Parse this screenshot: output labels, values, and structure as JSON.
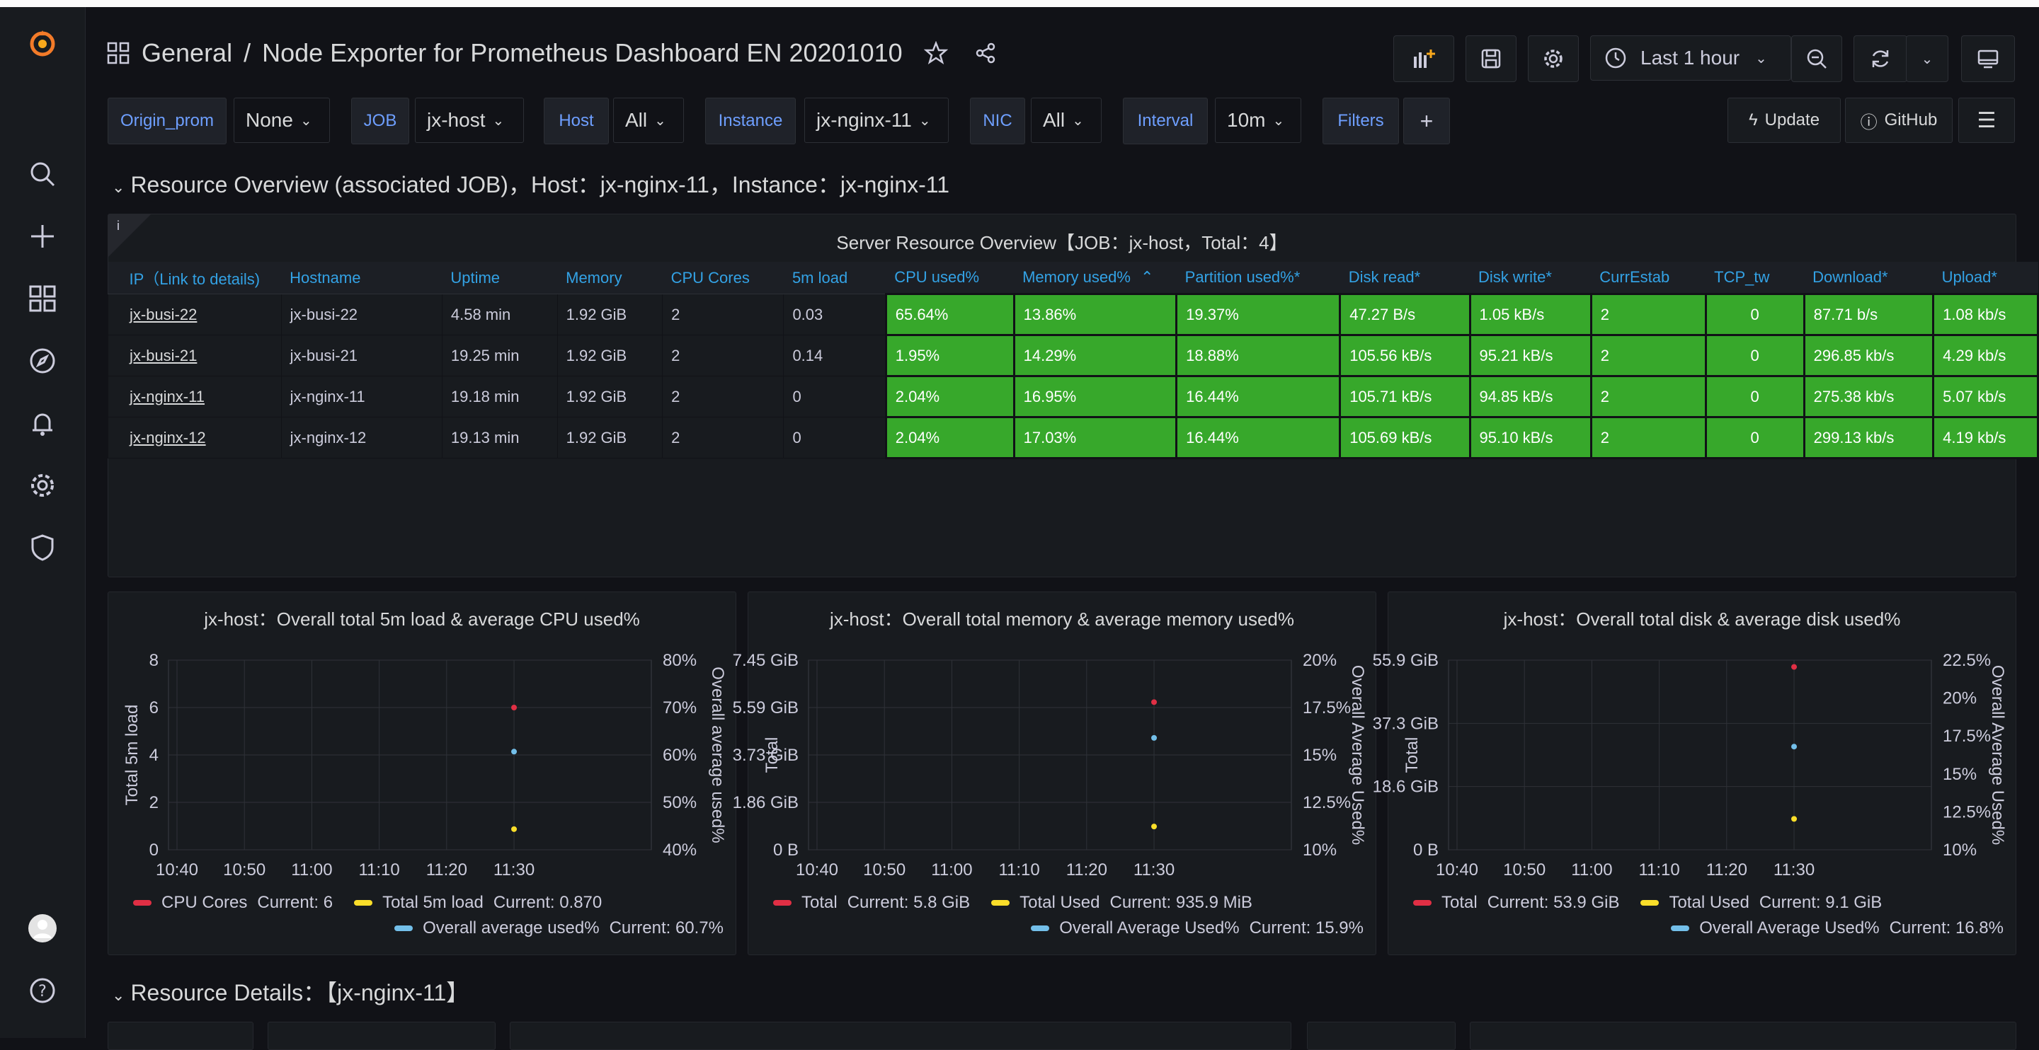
{
  "header": {
    "breadcrumb_folder": "General",
    "breadcrumb_sep": "/",
    "dashboard_title": "Node Exporter for Prometheus Dashboard EN 20201010",
    "time_range": "Last 1 hour"
  },
  "variables": [
    {
      "label": "Origin_prom",
      "value": "None"
    },
    {
      "label": "JOB",
      "value": "jx-host"
    },
    {
      "label": "Host",
      "value": "All"
    },
    {
      "label": "Instance",
      "value": "jx-nginx-11"
    },
    {
      "label": "NIC",
      "value": "All"
    },
    {
      "label": "Interval",
      "value": "10m"
    }
  ],
  "filters_label": "Filters",
  "links": {
    "update": "Update",
    "github": "GitHub"
  },
  "row1_title": "Resource Overview (associated JOB)，Host：jx-nginx-11，Instance：jx-nginx-11",
  "row2_title": "Resource Details：【jx-nginx-11】",
  "table_panel": {
    "title": "Server Resource Overview【JOB：jx-host，Total：4】",
    "columns": [
      "IP（Link to details)",
      "Hostname",
      "Uptime",
      "Memory",
      "CPU Cores",
      "5m load",
      "CPU used%",
      "Memory used%",
      "Partition used%*",
      "Disk read*",
      "Disk write*",
      "CurrEstab",
      "TCP_tw",
      "Download*",
      "Upload*"
    ],
    "rows": [
      [
        "jx-busi-22",
        "jx-busi-22",
        "4.58 min",
        "1.92 GiB",
        "2",
        "0.03",
        "65.64%",
        "13.86%",
        "19.37%",
        "47.27 B/s",
        "1.05 kB/s",
        "2",
        "0",
        "87.71 b/s",
        "1.08 kb/s"
      ],
      [
        "jx-busi-21",
        "jx-busi-21",
        "19.25 min",
        "1.92 GiB",
        "2",
        "0.14",
        "1.95%",
        "14.29%",
        "18.88%",
        "105.56 kB/s",
        "95.21 kB/s",
        "2",
        "0",
        "296.85 kb/s",
        "4.29 kb/s"
      ],
      [
        "jx-nginx-11",
        "jx-nginx-11",
        "19.18 min",
        "1.92 GiB",
        "2",
        "0",
        "2.04%",
        "16.95%",
        "16.44%",
        "105.71 kB/s",
        "94.85 kB/s",
        "2",
        "0",
        "275.38 kb/s",
        "5.07 kb/s"
      ],
      [
        "jx-nginx-12",
        "jx-nginx-12",
        "19.13 min",
        "1.92 GiB",
        "2",
        "0",
        "2.04%",
        "17.03%",
        "16.44%",
        "105.69 kB/s",
        "95.10 kB/s",
        "2",
        "0",
        "299.13 kb/s",
        "4.19 kb/s"
      ]
    ]
  },
  "chart_data": [
    {
      "type": "scatter",
      "title": "jx-host：Overall total 5m load & average CPU used%",
      "ylabel": "Total 5m load",
      "y2label": "Overall average used%",
      "x_ticks": [
        "10:40",
        "10:50",
        "11:00",
        "11:10",
        "11:20",
        "11:30"
      ],
      "y_ticks": [
        "0",
        "2",
        "4",
        "6",
        "8"
      ],
      "y2_ticks": [
        "40%",
        "50%",
        "60%",
        "70%",
        "80%"
      ],
      "ylim": [
        0,
        8
      ],
      "y2lim": [
        40,
        80
      ],
      "series": [
        {
          "name": "CPU Cores",
          "color": "#e02f44",
          "axis": "left",
          "x": "11:30",
          "y": 6,
          "legend_value": "Current: 6"
        },
        {
          "name": "Total 5m load",
          "color": "#fade2a",
          "axis": "left",
          "x": "11:30",
          "y": 0.87,
          "legend_value": "Current: 0.870"
        },
        {
          "name": "Overall average used%",
          "color": "#73bfe9",
          "axis": "right",
          "x": "11:30",
          "y": 60.7,
          "legend_value": "Current: 60.7%"
        }
      ]
    },
    {
      "type": "scatter",
      "title": "jx-host：Overall total memory & average memory used%",
      "ylabel": "Total",
      "y2label": "Overall Average Used%",
      "x_ticks": [
        "10:40",
        "10:50",
        "11:00",
        "11:10",
        "11:20",
        "11:30"
      ],
      "y_ticks": [
        "0 B",
        "1.86 GiB",
        "3.73 GiB",
        "5.59 GiB",
        "7.45 GiB"
      ],
      "y2_ticks": [
        "10%",
        "12.5%",
        "15%",
        "17.5%",
        "20%"
      ],
      "ylim": [
        0,
        7.45
      ],
      "y2lim": [
        10,
        20
      ],
      "series": [
        {
          "name": "Total",
          "color": "#e02f44",
          "axis": "left",
          "x": "11:30",
          "y": 5.8,
          "legend_value": "Current: 5.8 GiB"
        },
        {
          "name": "Total Used",
          "color": "#fade2a",
          "axis": "left",
          "x": "11:30",
          "y": 0.914,
          "legend_value": "Current: 935.9 MiB"
        },
        {
          "name": "Overall Average Used%",
          "color": "#73bfe9",
          "axis": "right",
          "x": "11:30",
          "y": 15.9,
          "legend_value": "Current: 15.9%"
        }
      ]
    },
    {
      "type": "scatter",
      "title": "jx-host：Overall total disk & average disk used%",
      "ylabel": "Total",
      "y2label": "Overall Average Used%",
      "x_ticks": [
        "10:40",
        "10:50",
        "11:00",
        "11:10",
        "11:20",
        "11:30"
      ],
      "y_ticks": [
        "0 B",
        "18.6 GiB",
        "37.3 GiB",
        "55.9 GiB"
      ],
      "y2_ticks": [
        "10%",
        "12.5%",
        "15%",
        "17.5%",
        "20%",
        "22.5%"
      ],
      "ylim": [
        0,
        55.9
      ],
      "y2lim": [
        10,
        22.5
      ],
      "series": [
        {
          "name": "Total",
          "color": "#e02f44",
          "axis": "left",
          "x": "11:30",
          "y": 53.9,
          "legend_value": "Current: 53.9 GiB"
        },
        {
          "name": "Total Used",
          "color": "#fade2a",
          "axis": "left",
          "x": "11:30",
          "y": 9.1,
          "legend_value": "Current: 9.1 GiB"
        },
        {
          "name": "Overall Average Used%",
          "color": "#73bfe9",
          "axis": "right",
          "x": "11:30",
          "y": 16.8,
          "legend_value": "Current: 16.8%"
        }
      ]
    }
  ],
  "colors": {
    "ok": "#37a82b",
    "link": "#33a2e5",
    "var_label": "#6e9fff",
    "background": "#111217",
    "panel": "#181b1f"
  }
}
